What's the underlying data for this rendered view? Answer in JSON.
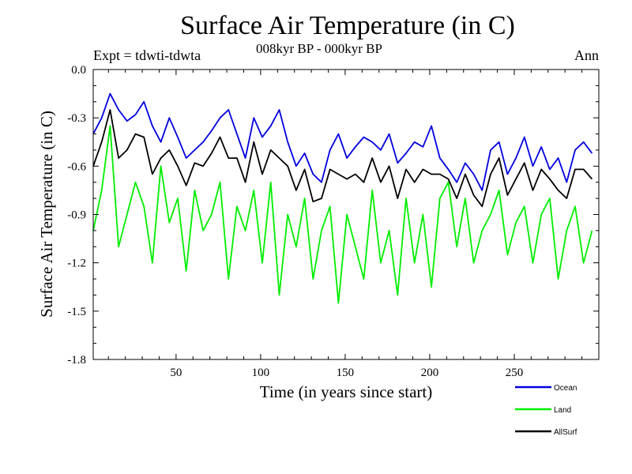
{
  "chart_data": {
    "type": "line",
    "title": "Surface Air Temperature (in C)",
    "subtitle": "008kyr BP - 000kyr BP",
    "experiment": "Expt = tdwti-tdwta",
    "season": "Ann",
    "xlabel": "Time (in years since start)",
    "ylabel": "Surface Air Temperature (in C)",
    "xlim": [
      1,
      300
    ],
    "ylim": [
      -1.8,
      0.0
    ],
    "xticks": [
      50,
      100,
      150,
      200,
      250
    ],
    "xtick_labels": [
      "50",
      "100",
      "150",
      "200",
      "250"
    ],
    "yticks": [
      0.0,
      -0.3,
      -0.6,
      -0.9,
      -1.2,
      -1.5,
      -1.8
    ],
    "ytick_labels": [
      "0.0",
      "-0.3",
      "-0.6",
      "-0.9",
      "-1.2",
      "-1.5",
      "-1.8"
    ],
    "x_start": 1,
    "x_step": 5,
    "series": [
      {
        "name": "Ocean",
        "color": "#0000e0",
        "values": [
          -0.4,
          -0.3,
          -0.15,
          -0.25,
          -0.32,
          -0.28,
          -0.2,
          -0.35,
          -0.45,
          -0.3,
          -0.42,
          -0.55,
          -0.5,
          -0.45,
          -0.38,
          -0.3,
          -0.25,
          -0.4,
          -0.55,
          -0.3,
          -0.42,
          -0.35,
          -0.25,
          -0.45,
          -0.6,
          -0.52,
          -0.65,
          -0.7,
          -0.5,
          -0.4,
          -0.55,
          -0.48,
          -0.42,
          -0.45,
          -0.5,
          -0.4,
          -0.58,
          -0.52,
          -0.45,
          -0.48,
          -0.35,
          -0.55,
          -0.62,
          -0.7,
          -0.58,
          -0.65,
          -0.75,
          -0.5,
          -0.45,
          -0.65,
          -0.55,
          -0.42,
          -0.6,
          -0.48,
          -0.62,
          -0.55,
          -0.7,
          -0.5,
          -0.45,
          -0.52
        ]
      },
      {
        "name": "Land",
        "color": "#00ee00",
        "values": [
          -1.0,
          -0.75,
          -0.35,
          -1.1,
          -0.9,
          -0.7,
          -0.85,
          -1.2,
          -0.6,
          -0.95,
          -0.8,
          -1.25,
          -0.75,
          -1.0,
          -0.9,
          -0.7,
          -1.3,
          -0.85,
          -1.0,
          -0.75,
          -1.2,
          -0.7,
          -1.4,
          -0.9,
          -1.1,
          -0.8,
          -1.3,
          -1.0,
          -0.85,
          -1.45,
          -0.9,
          -1.1,
          -1.3,
          -0.75,
          -1.2,
          -1.0,
          -1.4,
          -0.8,
          -1.2,
          -0.9,
          -1.35,
          -0.8,
          -0.7,
          -1.1,
          -0.8,
          -1.2,
          -1.0,
          -0.9,
          -0.75,
          -1.15,
          -0.95,
          -0.85,
          -1.2,
          -0.9,
          -0.8,
          -1.3,
          -1.0,
          -0.85,
          -1.2,
          -1.0
        ]
      },
      {
        "name": "AllSurf",
        "color": "#000000",
        "values": [
          -0.6,
          -0.45,
          -0.25,
          -0.55,
          -0.5,
          -0.4,
          -0.42,
          -0.65,
          -0.55,
          -0.5,
          -0.6,
          -0.72,
          -0.58,
          -0.6,
          -0.52,
          -0.42,
          -0.55,
          -0.55,
          -0.7,
          -0.45,
          -0.65,
          -0.5,
          -0.55,
          -0.6,
          -0.75,
          -0.62,
          -0.82,
          -0.8,
          -0.62,
          -0.65,
          -0.68,
          -0.65,
          -0.7,
          -0.55,
          -0.7,
          -0.6,
          -0.8,
          -0.62,
          -0.7,
          -0.62,
          -0.65,
          -0.65,
          -0.68,
          -0.8,
          -0.65,
          -0.78,
          -0.85,
          -0.65,
          -0.55,
          -0.78,
          -0.68,
          -0.58,
          -0.75,
          -0.62,
          -0.68,
          -0.75,
          -0.8,
          -0.62,
          -0.62,
          -0.68
        ]
      }
    ],
    "legend": {
      "placement": "bottom-right",
      "entries": [
        "Ocean",
        "Land",
        "AllSurf"
      ]
    }
  }
}
